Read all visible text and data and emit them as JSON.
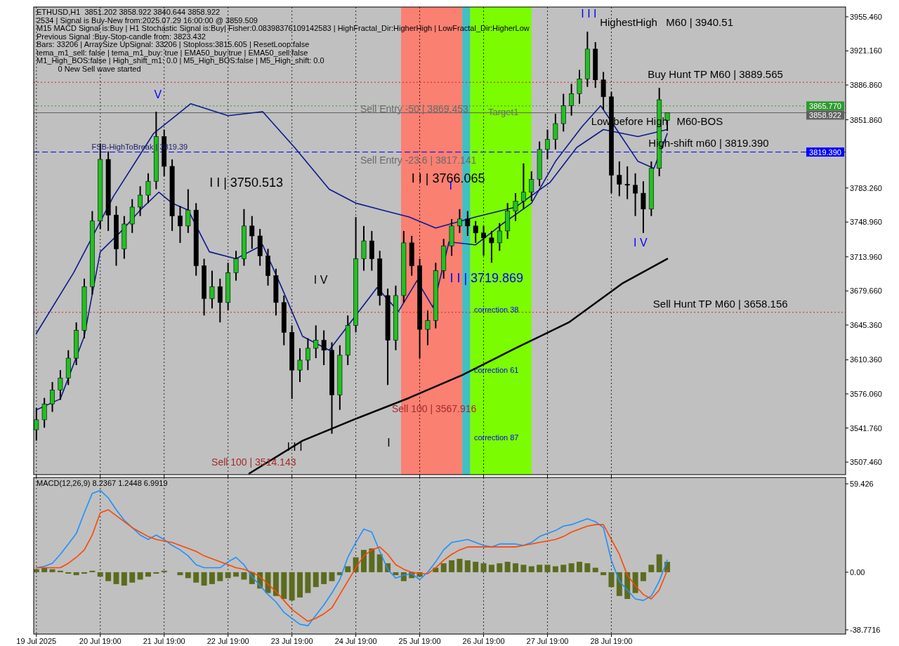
{
  "chart_data": [
    {
      "type": "candlestick",
      "x": [
        "2025-07-19T19:00",
        "2025-07-19T22:00",
        "2025-07-20T01:00",
        "2025-07-20T04:00",
        "2025-07-20T07:00",
        "2025-07-20T10:00",
        "2025-07-20T13:00",
        "2025-07-20T16:00",
        "2025-07-20T19:00",
        "2025-07-20T22:00",
        "2025-07-21T01:00",
        "2025-07-21T04:00",
        "2025-07-21T07:00",
        "2025-07-21T10:00",
        "2025-07-21T13:00",
        "2025-07-21T16:00",
        "2025-07-21T19:00",
        "2025-07-21T22:00",
        "2025-07-22T01:00",
        "2025-07-22T04:00",
        "2025-07-22T07:00",
        "2025-07-22T10:00",
        "2025-07-22T13:00",
        "2025-07-22T16:00",
        "2025-07-22T19:00",
        "2025-07-22T22:00",
        "2025-07-23T01:00",
        "2025-07-23T04:00",
        "2025-07-23T07:00",
        "2025-07-23T10:00",
        "2025-07-23T13:00",
        "2025-07-23T16:00",
        "2025-07-23T19:00",
        "2025-07-23T22:00",
        "2025-07-24T01:00",
        "2025-07-24T04:00",
        "2025-07-24T07:00",
        "2025-07-24T10:00",
        "2025-07-24T13:00",
        "2025-07-24T16:00",
        "2025-07-24T19:00",
        "2025-07-24T22:00",
        "2025-07-25T01:00",
        "2025-07-25T04:00",
        "2025-07-25T07:00",
        "2025-07-25T10:00",
        "2025-07-25T13:00",
        "2025-07-25T16:00",
        "2025-07-25T19:00",
        "2025-07-25T22:00",
        "2025-07-26T01:00",
        "2025-07-26T04:00",
        "2025-07-26T07:00",
        "2025-07-26T10:00",
        "2025-07-26T13:00",
        "2025-07-26T16:00",
        "2025-07-26T19:00",
        "2025-07-26T22:00",
        "2025-07-27T01:00",
        "2025-07-27T04:00",
        "2025-07-27T07:00",
        "2025-07-27T10:00",
        "2025-07-27T13:00",
        "2025-07-27T16:00",
        "2025-07-27T19:00",
        "2025-07-27T22:00",
        "2025-07-28T01:00",
        "2025-07-28T04:00",
        "2025-07-28T07:00",
        "2025-07-28T10:00",
        "2025-07-28T13:00",
        "2025-07-28T16:00",
        "2025-07-28T19:00",
        "2025-07-28T22:00",
        "2025-07-29T01:00",
        "2025-07-29T04:00",
        "2025-07-29T07:00",
        "2025-07-29T10:00",
        "2025-07-29T13:00",
        "2025-07-29T16:00"
      ],
      "ohlc": [
        [
          3540,
          3562,
          3529,
          3550
        ],
        [
          3550,
          3572,
          3542,
          3566
        ],
        [
          3566,
          3588,
          3558,
          3580
        ],
        [
          3580,
          3600,
          3570,
          3592
        ],
        [
          3592,
          3620,
          3585,
          3612
        ],
        [
          3612,
          3648,
          3605,
          3640
        ],
        [
          3640,
          3692,
          3632,
          3684
        ],
        [
          3684,
          3760,
          3676,
          3750
        ],
        [
          3750,
          3828,
          3742,
          3812
        ],
        [
          3812,
          3820,
          3740,
          3756
        ],
        [
          3756,
          3765,
          3705,
          3722
        ],
        [
          3722,
          3755,
          3712,
          3747
        ],
        [
          3747,
          3772,
          3738,
          3764
        ],
        [
          3764,
          3785,
          3755,
          3776
        ],
        [
          3776,
          3798,
          3768,
          3790
        ],
        [
          3790,
          3860,
          3782,
          3835
        ],
        [
          3835,
          3842,
          3795,
          3805
        ],
        [
          3805,
          3812,
          3740,
          3755
        ],
        [
          3755,
          3765,
          3728,
          3745
        ],
        [
          3745,
          3782,
          3738,
          3761
        ],
        [
          3761,
          3768,
          3695,
          3705
        ],
        [
          3705,
          3712,
          3655,
          3672
        ],
        [
          3672,
          3700,
          3662,
          3684
        ],
        [
          3684,
          3692,
          3648,
          3668
        ],
        [
          3668,
          3708,
          3660,
          3698
        ],
        [
          3698,
          3720,
          3690,
          3712
        ],
        [
          3712,
          3762,
          3705,
          3745
        ],
        [
          3745,
          3755,
          3722,
          3735
        ],
        [
          3735,
          3742,
          3705,
          3715
        ],
        [
          3715,
          3722,
          3685,
          3695
        ],
        [
          3695,
          3702,
          3655,
          3668
        ],
        [
          3668,
          3675,
          3625,
          3638
        ],
        [
          3638,
          3645,
          3571,
          3600
        ],
        [
          3600,
          3622,
          3588,
          3610
        ],
        [
          3610,
          3632,
          3600,
          3622
        ],
        [
          3622,
          3645,
          3612,
          3630
        ],
        [
          3630,
          3640,
          3605,
          3620
        ],
        [
          3620,
          3628,
          3536,
          3575
        ],
        [
          3575,
          3625,
          3560,
          3615
        ],
        [
          3615,
          3655,
          3605,
          3645
        ],
        [
          3645,
          3754,
          3638,
          3712
        ],
        [
          3712,
          3745,
          3700,
          3730
        ],
        [
          3730,
          3740,
          3700,
          3712
        ],
        [
          3712,
          3720,
          3665,
          3675
        ],
        [
          3675,
          3682,
          3585,
          3630
        ],
        [
          3630,
          3685,
          3620,
          3675
        ],
        [
          3675,
          3740,
          3668,
          3728
        ],
        [
          3728,
          3735,
          3695,
          3705
        ],
        [
          3705,
          3712,
          3612,
          3641
        ],
        [
          3641,
          3660,
          3625,
          3650
        ],
        [
          3650,
          3708,
          3642,
          3700
        ],
        [
          3700,
          3732,
          3692,
          3725
        ],
        [
          3725,
          3752,
          3715,
          3745
        ],
        [
          3745,
          3762,
          3738,
          3752
        ],
        [
          3752,
          3760,
          3735,
          3745
        ],
        [
          3745,
          3750,
          3728,
          3738
        ],
        [
          3738,
          3745,
          3715,
          3733
        ],
        [
          3733,
          3740,
          3708,
          3728
        ],
        [
          3728,
          3748,
          3720,
          3740
        ],
        [
          3740,
          3768,
          3732,
          3760
        ],
        [
          3760,
          3778,
          3750,
          3770
        ],
        [
          3770,
          3808,
          3762,
          3779
        ],
        [
          3779,
          3800,
          3770,
          3792
        ],
        [
          3792,
          3830,
          3785,
          3822
        ],
        [
          3822,
          3842,
          3812,
          3832
        ],
        [
          3832,
          3858,
          3822,
          3848
        ],
        [
          3848,
          3878,
          3840,
          3866
        ],
        [
          3866,
          3888,
          3856,
          3878
        ],
        [
          3878,
          3902,
          3868,
          3893
        ],
        [
          3893,
          3940.51,
          3885,
          3923
        ],
        [
          3923,
          3930,
          3884,
          3892
        ],
        [
          3892,
          3900,
          3862,
          3875
        ],
        [
          3875,
          3880,
          3778,
          3796
        ],
        [
          3796,
          3810,
          3775,
          3787
        ],
        [
          3787,
          3805,
          3772,
          3786
        ],
        [
          3786,
          3798,
          3755,
          3778
        ],
        [
          3778,
          3790,
          3738,
          3762
        ],
        [
          3762,
          3810,
          3755,
          3803
        ],
        [
          3803,
          3884,
          3795,
          3872
        ],
        [
          3851.202,
          3858.922,
          3840.644,
          3858.922
        ]
      ],
      "series": [
        {
          "type": "line",
          "color": "#000000",
          "x": [
            "2025-07-23T03:00",
            "2025-07-23T23:00",
            "2025-07-24T19:00",
            "2025-07-25T15:00",
            "2025-07-26T11:00",
            "2025-07-27T07:00",
            "2025-07-28T03:00",
            "2025-07-28T23:00",
            "2025-07-29T16:00"
          ],
          "values": [
            3496,
            3529,
            3551,
            3572,
            3595,
            3622,
            3648,
            3687,
            3712
          ]
        },
        {
          "type": "line",
          "color": "#0a1a8a",
          "x": [
            "2025-07-19T19:00",
            "2025-07-20T09:00",
            "2025-07-21T00:00",
            "2025-07-21T15:00",
            "2025-07-22T05:00",
            "2025-07-22T19:00",
            "2025-07-23T08:00",
            "2025-07-23T20:00",
            "2025-07-24T09:00",
            "2025-07-24T19:00",
            "2025-07-25T05:00",
            "2025-07-25T15:00",
            "2025-07-26T01:00",
            "2025-07-26T16:00",
            "2025-07-27T07:00",
            "2025-07-27T20:00",
            "2025-07-28T06:00",
            "2025-07-28T16:00",
            "2025-07-29T05:00",
            "2025-07-29T16:00"
          ],
          "values": [
            3637,
            3698,
            3775,
            3838,
            3868,
            3856,
            3860,
            3824,
            3782,
            3768,
            3761,
            3754,
            3743,
            3754,
            3764,
            3789,
            3824,
            3842,
            3835,
            3842
          ]
        },
        {
          "type": "line",
          "color": "#0a1a8a",
          "x": [
            "2025-07-19T19:00",
            "2025-07-20T04:00",
            "2025-07-20T13:00",
            "2025-07-20T19:00",
            "2025-07-21T03:00",
            "2025-07-21T10:00",
            "2025-07-21T17:00",
            "2025-07-21T22:00",
            "2025-07-22T04:00",
            "2025-07-22T12:00",
            "2025-07-22T22:00",
            "2025-07-23T08:00",
            "2025-07-23T15:00",
            "2025-07-23T23:00",
            "2025-07-24T09:00",
            "2025-07-24T19:00",
            "2025-07-25T03:00",
            "2025-07-25T11:00",
            "2025-07-25T18:00",
            "2025-07-26T00:00",
            "2025-07-26T06:00",
            "2025-07-26T16:00",
            "2025-07-27T02:00",
            "2025-07-27T13:00",
            "2025-07-27T22:00",
            "2025-07-28T08:00",
            "2025-07-28T15:00",
            "2025-07-28T21:00",
            "2025-07-29T05:00",
            "2025-07-29T11:00",
            "2025-07-29T16:00"
          ],
          "values": [
            3560,
            3571,
            3634,
            3719,
            3740,
            3761,
            3779,
            3768,
            3761,
            3719,
            3712,
            3726,
            3684,
            3634,
            3620,
            3655,
            3683,
            3659,
            3690,
            3663,
            3729,
            3726,
            3747,
            3768,
            3810,
            3845,
            3866,
            3842,
            3810,
            3803,
            3838
          ]
        }
      ],
      "xlim": [
        "2025-07-19T18:00",
        "2025-08-01T11:00"
      ],
      "xticks": [
        {
          "value": "2025-07-19T19:00",
          "label": null
        },
        {
          "value": "2025-07-20T19:00",
          "label": null
        },
        {
          "value": "2025-07-21T19:00",
          "label": null
        },
        {
          "value": "2025-07-22T19:00",
          "label": null
        },
        {
          "value": "2025-07-23T19:00",
          "label": null
        },
        {
          "value": "2025-07-24T19:00",
          "label": null
        },
        {
          "value": "2025-07-25T19:00",
          "label": null
        },
        {
          "value": "2025-07-26T19:00",
          "label": null
        },
        {
          "value": "2025-07-27T19:00",
          "label": null
        },
        {
          "value": "2025-07-28T19:00",
          "label": null
        }
      ],
      "ylim": [
        3494.8,
        3965.3
      ],
      "yticks": [
        {
          "value": 3955.46,
          "label": "3955.460"
        },
        {
          "value": 3921.16,
          "label": "3921.160"
        },
        {
          "value": 3886.86,
          "label": "3886.860"
        },
        {
          "value": 3851.86,
          "label": "3851.860"
        },
        {
          "value": 3783.26,
          "label": "3783.260"
        },
        {
          "value": 3748.96,
          "label": "3748.960"
        },
        {
          "value": 3713.96,
          "label": "3713.960"
        },
        {
          "value": 3679.66,
          "label": "3679.660"
        },
        {
          "value": 3645.36,
          "label": "3645.360"
        },
        {
          "value": 3610.36,
          "label": "3610.360"
        },
        {
          "value": 3576.06,
          "label": "3576.060"
        },
        {
          "value": 3541.76,
          "label": "3541.760"
        },
        {
          "value": 3507.46,
          "label": "3507.460"
        }
      ],
      "tick_labels": "y",
      "grid": "x",
      "bands": [
        {
          "axis": "x",
          "from": "2025-07-25T12:00",
          "to": "2025-07-26T11:00",
          "color": "#fa8072"
        },
        {
          "axis": "x",
          "from": "2025-07-26T11:00",
          "to": "2025-07-26T14:00",
          "color": "#40c0c0"
        },
        {
          "axis": "x",
          "from": "2025-07-26T14:00",
          "to": "2025-07-27T13:00",
          "color": "#7cfc00"
        }
      ],
      "ref_lines": [
        {
          "axis": "y",
          "value": 3819.39,
          "label": "3819.390",
          "color": "#0000ff",
          "line_style": "dashed"
        },
        {
          "axis": "y",
          "value": 3865.77,
          "label": "3865.770",
          "color": "#2e9a2e",
          "line_style": "dotted"
        },
        {
          "axis": "y",
          "value": 3858.922,
          "label": "3858.922",
          "color": "#606060",
          "line_style": "solid"
        },
        {
          "axis": "y",
          "value": 3889.565,
          "color": "#d02020",
          "line_style": "dotted"
        },
        {
          "axis": "y",
          "value": 3658.156,
          "color": "#d02020",
          "line_style": "dotted"
        }
      ],
      "annotations": [
        "ETHUSD,H1  3851.202 3858.922 3840.644 3858.922",
        "2534 | Signal is Buy-New from:2025.07.29 16:00:00 @ 3859.509",
        "M15 MACD Signal is:Buy | H1 Stochastic Signal is:Buy| Fisher:0.08398376109142583 | HighFractal_Dir:HigherHigh | LowFractal_Dir:HigherLow",
        "Previous Signal :Buy-Stop-candle from: 3823.432",
        "Bars: 33206 | ArraySize UpSignal: 33206 | Stoploss:3815.605 | ResetLoop:false",
        "tema_m1_sell: false | tema_m1_buy: true | EMA50_buy:true | EMA50_sell:false",
        "M1_High_BOS:false | High_shift_m1: 0.0 | M5_High_BOS:false | M5_High_shift: 0.0",
        "          0 New Sell wave started",
        "FSB-HighToBreak | 3819.39",
        "Sell Entry -50 | 3869.453",
        "Target1",
        "Sell Entry -23.6 | 3817.141",
        "I I | 3766.065",
        "I I | 3750.513",
        "I I | 3719.869",
        "Sell 100 | 3567.916",
        "Sell 100 | 3514.143",
        "HighestHigh   M60 | 3940.51",
        "Buy Hunt TP M60 | 3889.565",
        "Low before High   M60-BOS",
        "High-shift m60 | 3819.390",
        "Sell Hunt TP M60 | 3658.156",
        "correction 38",
        "correction 61",
        "correction 87",
        "V",
        "I V",
        "I I I",
        "I",
        "I",
        "I I I",
        "I V"
      ]
    },
    {
      "type": "bar",
      "title": "MACD(12,26,9) 8.2367 1.2448 6.9919",
      "x": [
        "2025-07-19T19:00",
        "2025-07-19T22:00",
        "2025-07-20T01:00",
        "2025-07-20T04:00",
        "2025-07-20T07:00",
        "2025-07-20T10:00",
        "2025-07-20T13:00",
        "2025-07-20T16:00",
        "2025-07-20T19:00",
        "2025-07-20T22:00",
        "2025-07-21T01:00",
        "2025-07-21T04:00",
        "2025-07-21T07:00",
        "2025-07-21T10:00",
        "2025-07-21T13:00",
        "2025-07-21T16:00",
        "2025-07-21T19:00",
        "2025-07-21T22:00",
        "2025-07-22T01:00",
        "2025-07-22T04:00",
        "2025-07-22T07:00",
        "2025-07-22T10:00",
        "2025-07-22T13:00",
        "2025-07-22T16:00",
        "2025-07-22T19:00",
        "2025-07-22T22:00",
        "2025-07-23T01:00",
        "2025-07-23T04:00",
        "2025-07-23T07:00",
        "2025-07-23T10:00",
        "2025-07-23T13:00",
        "2025-07-23T16:00",
        "2025-07-23T19:00",
        "2025-07-23T22:00",
        "2025-07-24T01:00",
        "2025-07-24T04:00",
        "2025-07-24T07:00",
        "2025-07-24T10:00",
        "2025-07-24T13:00",
        "2025-07-24T16:00",
        "2025-07-24T19:00",
        "2025-07-24T22:00",
        "2025-07-25T01:00",
        "2025-07-25T04:00",
        "2025-07-25T07:00",
        "2025-07-25T10:00",
        "2025-07-25T13:00",
        "2025-07-25T16:00",
        "2025-07-25T19:00",
        "2025-07-25T22:00",
        "2025-07-26T01:00",
        "2025-07-26T04:00",
        "2025-07-26T07:00",
        "2025-07-26T10:00",
        "2025-07-26T13:00",
        "2025-07-26T16:00",
        "2025-07-26T19:00",
        "2025-07-26T22:00",
        "2025-07-27T01:00",
        "2025-07-27T04:00",
        "2025-07-27T07:00",
        "2025-07-27T10:00",
        "2025-07-27T13:00",
        "2025-07-27T16:00",
        "2025-07-27T19:00",
        "2025-07-27T22:00",
        "2025-07-28T01:00",
        "2025-07-28T04:00",
        "2025-07-28T07:00",
        "2025-07-28T10:00",
        "2025-07-28T13:00",
        "2025-07-28T16:00",
        "2025-07-28T19:00",
        "2025-07-28T22:00",
        "2025-07-29T01:00",
        "2025-07-29T04:00",
        "2025-07-29T07:00",
        "2025-07-29T10:00",
        "2025-07-29T13:00",
        "2025-07-29T16:00"
      ],
      "series": [
        {
          "type": "bar",
          "color": "#5b6b1f",
          "values": [
            2,
            3,
            2,
            1,
            -1,
            -2,
            -1,
            1,
            -3,
            -6,
            -8,
            -9,
            -7,
            -5,
            -3,
            -1,
            1,
            0,
            -2,
            -4,
            -7,
            -9,
            -8,
            -6,
            -4,
            -3,
            -5,
            -8,
            -11,
            -14,
            -16,
            -18,
            -19,
            -17,
            -14,
            -10,
            -8,
            -6,
            -2,
            4,
            10,
            15,
            16,
            12,
            6,
            -2,
            -6,
            -4,
            -3,
            null,
            3,
            6,
            8,
            9,
            8,
            7,
            6,
            5,
            6,
            7,
            6,
            5,
            4,
            5,
            5,
            4,
            5,
            6,
            7,
            6,
            3,
            -2,
            -10,
            -16,
            -18,
            -14,
            -6,
            5,
            12,
            6.9919
          ]
        },
        {
          "type": "line",
          "color": "#1e90ff",
          "values": [
            3,
            4,
            6,
            12,
            19,
            26,
            40,
            53,
            55,
            50,
            42,
            35,
            30,
            25,
            22,
            25,
            22,
            18,
            15,
            11,
            5,
            3,
            3,
            3,
            7,
            10,
            5,
            -3,
            -9,
            -15,
            -20,
            -27,
            -31,
            -35,
            -36,
            -29,
            -22,
            -14,
            -5,
            10,
            20,
            29,
            27,
            14,
            2,
            -4,
            -2,
            -1,
            -5,
            0,
            7,
            15,
            20,
            21,
            22,
            20,
            18,
            17,
            19,
            19,
            19,
            18,
            20,
            24,
            26,
            28,
            31,
            32,
            34,
            36,
            34,
            30,
            8,
            -6,
            -12,
            -18,
            -19,
            -16,
            -6,
            8.2367
          ]
        },
        {
          "type": "line",
          "color": "#ff4500",
          "values": [
            3,
            3,
            3,
            3,
            6,
            10,
            15,
            25,
            40,
            42,
            38,
            34,
            30,
            27,
            24,
            22,
            21,
            20,
            18,
            16,
            14,
            11,
            9,
            7,
            5,
            3,
            2,
            0,
            -3,
            -8,
            -13,
            -19,
            -25,
            -29,
            -33,
            -31,
            -28,
            -24,
            -15,
            -6,
            3,
            11,
            15,
            17,
            12,
            5,
            2,
            0,
            -1,
            -1,
            3,
            8,
            12,
            15,
            17,
            17,
            17,
            17,
            17,
            17,
            17,
            18,
            19,
            20,
            21,
            22,
            24,
            27,
            29,
            31,
            32,
            32,
            22,
            12,
            -2,
            -9,
            -15,
            -18,
            -12,
            1.2448
          ]
        }
      ],
      "xlim": [
        "2025-07-19T18:00",
        "2025-08-01T11:00"
      ],
      "xticks": [
        {
          "value": "2025-07-19T19:00",
          "label": "19 Jul 2025"
        },
        {
          "value": "2025-07-20T19:00",
          "label": "20 Jul 19:00"
        },
        {
          "value": "2025-07-21T19:00",
          "label": "21 Jul 19:00"
        },
        {
          "value": "2025-07-22T19:00",
          "label": "22 Jul 19:00"
        },
        {
          "value": "2025-07-23T19:00",
          "label": "23 Jul 19:00"
        },
        {
          "value": "2025-07-24T19:00",
          "label": "24 Jul 19:00"
        },
        {
          "value": "2025-07-25T19:00",
          "label": "25 Jul 19:00"
        },
        {
          "value": "2025-07-26T19:00",
          "label": "26 Jul 19:00"
        },
        {
          "value": "2025-07-27T19:00",
          "label": "27 Jul 19:00"
        },
        {
          "value": "2025-07-28T19:00",
          "label": "28 Jul 19:00"
        }
      ],
      "ylim": [
        -41.6,
        63.7
      ],
      "yticks": [
        59.426,
        {
          "value": 0,
          "label": "0.00"
        },
        -38.7716
      ],
      "grid": "x"
    }
  ]
}
